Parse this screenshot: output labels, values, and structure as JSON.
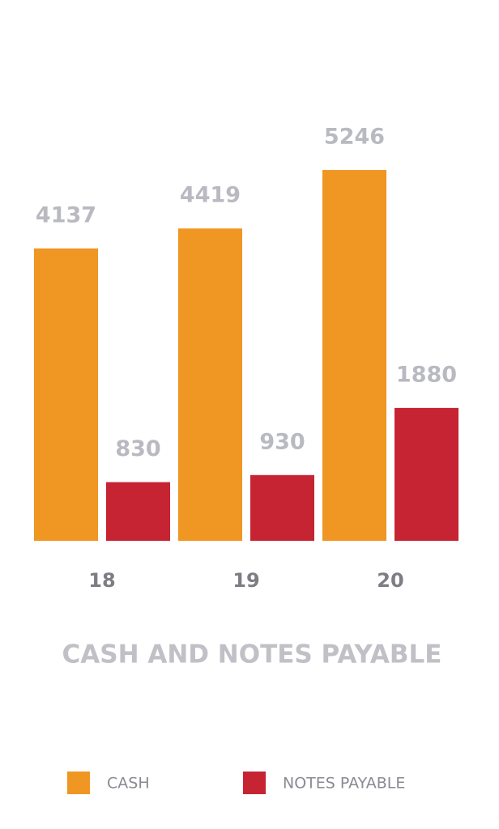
{
  "chart_data": {
    "type": "bar",
    "title": "CASH AND NOTES PAYABLE",
    "categories": [
      "18",
      "19",
      "20"
    ],
    "series": [
      {
        "name": "CASH",
        "color": "#f09622",
        "values": [
          4137,
          4419,
          5246
        ]
      },
      {
        "name": "NOTES PAYABLE",
        "color": "#c62432",
        "values": [
          830,
          930,
          1880
        ]
      }
    ],
    "legend": "bottom"
  }
}
